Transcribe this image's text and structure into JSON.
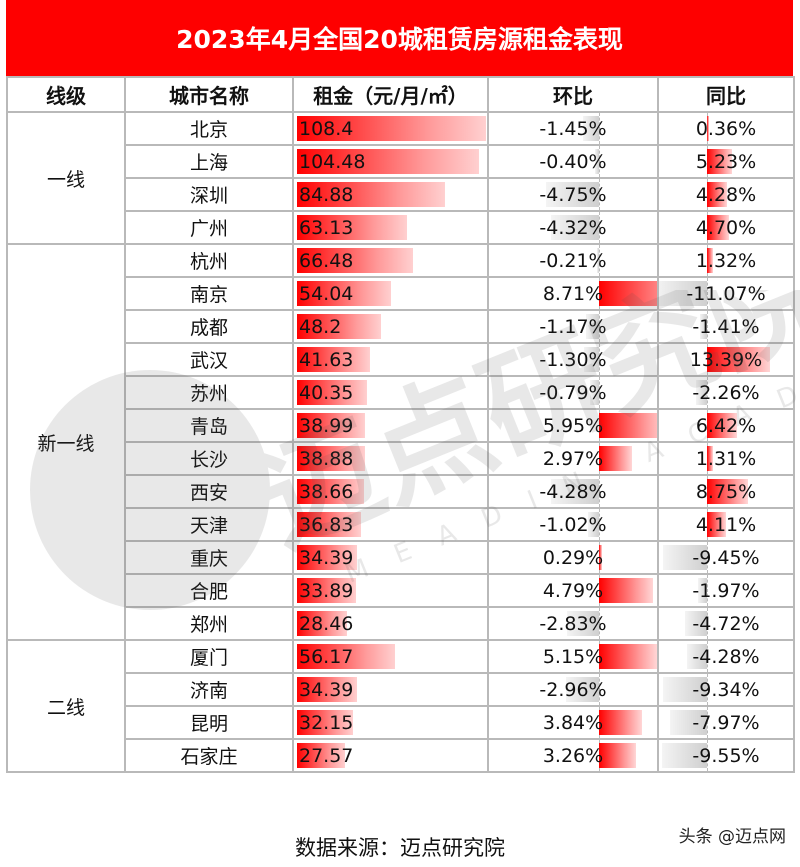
{
  "title": "2023年4月全国20城租赁房源租金表现",
  "headers": [
    "线级",
    "城市名称",
    "租金（元/月/㎡）",
    "环比",
    "同比"
  ],
  "colors": {
    "title_bg": "#fe0000",
    "positive_bar": "#ff0000",
    "negative_bar": "#cfcfcf",
    "grid": "#b9b9b9"
  },
  "tiers": [
    {
      "label": "一线",
      "rows": 4
    },
    {
      "label": "新一线",
      "rows": 12
    },
    {
      "label": "二线",
      "rows": 4
    }
  ],
  "rows": [
    {
      "city": "北京",
      "rent": "108.4",
      "mom": "-1.45%",
      "yoy": "0.36%"
    },
    {
      "city": "上海",
      "rent": "104.48",
      "mom": "-0.40%",
      "yoy": "5.23%"
    },
    {
      "city": "深圳",
      "rent": "84.88",
      "mom": "-4.75%",
      "yoy": "4.28%"
    },
    {
      "city": "广州",
      "rent": "63.13",
      "mom": "-4.32%",
      "yoy": "4.70%"
    },
    {
      "city": "杭州",
      "rent": "66.48",
      "mom": "-0.21%",
      "yoy": "1.32%"
    },
    {
      "city": "南京",
      "rent": "54.04",
      "mom": "8.71%",
      "yoy": "-11.07%"
    },
    {
      "city": "成都",
      "rent": "48.2",
      "mom": "-1.17%",
      "yoy": "-1.41%"
    },
    {
      "city": "武汉",
      "rent": "41.63",
      "mom": "-1.30%",
      "yoy": "13.39%"
    },
    {
      "city": "苏州",
      "rent": "40.35",
      "mom": "-0.79%",
      "yoy": "-2.26%"
    },
    {
      "city": "青岛",
      "rent": "38.99",
      "mom": "5.95%",
      "yoy": "6.42%"
    },
    {
      "city": "长沙",
      "rent": "38.88",
      "mom": "2.97%",
      "yoy": "1.31%"
    },
    {
      "city": "西安",
      "rent": "38.66",
      "mom": "-4.28%",
      "yoy": "8.75%"
    },
    {
      "city": "天津",
      "rent": "36.83",
      "mom": "-1.02%",
      "yoy": "4.11%"
    },
    {
      "city": "重庆",
      "rent": "34.39",
      "mom": "0.29%",
      "yoy": "-9.45%"
    },
    {
      "city": "合肥",
      "rent": "33.89",
      "mom": "4.79%",
      "yoy": "-1.97%"
    },
    {
      "city": "郑州",
      "rent": "28.46",
      "mom": "-2.83%",
      "yoy": "-4.72%"
    },
    {
      "city": "厦门",
      "rent": "56.17",
      "mom": "5.15%",
      "yoy": "-4.28%"
    },
    {
      "city": "济南",
      "rent": "34.39",
      "mom": "-2.96%",
      "yoy": "-9.34%"
    },
    {
      "city": "昆明",
      "rent": "32.15",
      "mom": "3.84%",
      "yoy": "-7.97%"
    },
    {
      "city": "石家庄",
      "rent": "27.57",
      "mom": "3.26%",
      "yoy": "-9.55%"
    }
  ],
  "footer": {
    "source": "数据来源：迈点研究院",
    "credit": "头条 @迈点网"
  },
  "watermark": {
    "text": "迈点研究院",
    "subtext": "MEADIN ACADEMY"
  }
}
